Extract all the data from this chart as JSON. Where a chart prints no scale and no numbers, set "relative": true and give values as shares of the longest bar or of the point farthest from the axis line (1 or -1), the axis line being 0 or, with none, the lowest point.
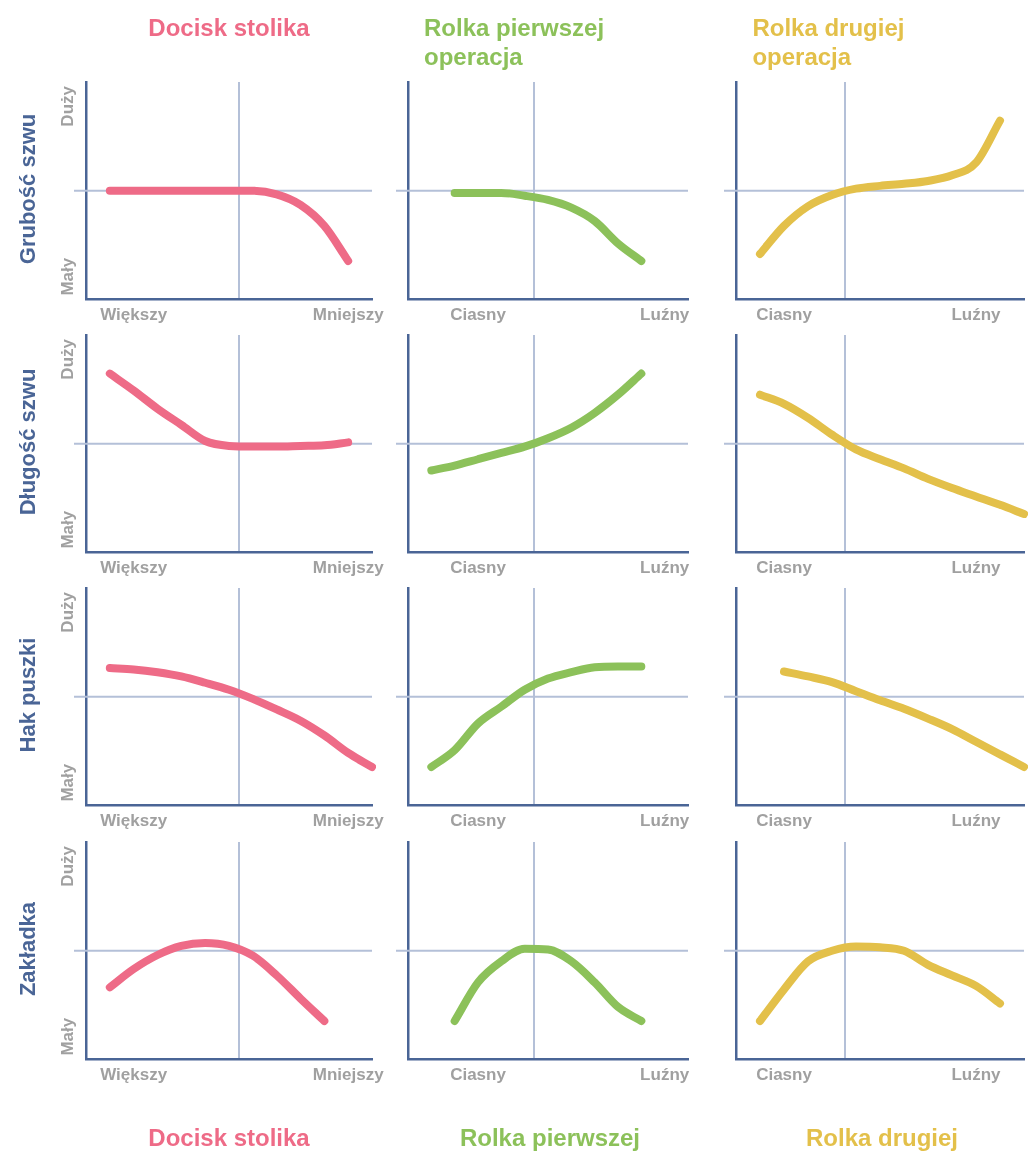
{
  "chart_data": [
    {
      "type": "line",
      "title": "Docisk stolika",
      "ylabel": "Grubość szwu",
      "relative": true,
      "categories": [
        null,
        null,
        "Większy",
        null,
        null,
        null,
        null,
        null,
        null,
        null,
        null,
        "Mniejszy",
        null
      ],
      "series": [
        {
          "color": "#ee6b87",
          "values": [
            null,
            0,
            0,
            0,
            0,
            0,
            0,
            0,
            -0.05,
            -0.2,
            -0.5,
            -1,
            null
          ]
        }
      ],
      "ref_lines": [
        {
          "axis": "y",
          "value": 0,
          "color": "#b4c0d8"
        }
      ],
      "annotations": [
        "Duży",
        "Mały"
      ]
    },
    {
      "type": "line",
      "title": "Rolka pierwszej operacja",
      "relative": true,
      "categories": [
        null,
        null,
        null,
        "Ciasny",
        null,
        null,
        null,
        null,
        null,
        null,
        null,
        "Luźny",
        null
      ],
      "series": [
        {
          "color": "#8cc15a",
          "values": [
            null,
            null,
            -0.03,
            -0.03,
            -0.03,
            -0.07,
            -0.13,
            -0.24,
            -0.43,
            -0.75,
            -1,
            null,
            null
          ]
        }
      ],
      "ref_lines": [
        {
          "axis": "y",
          "value": 0,
          "color": "#b4c0d8"
        }
      ]
    },
    {
      "type": "line",
      "title": "Rolka drugiej operacja",
      "relative": true,
      "categories": [
        null,
        null,
        "Ciasny",
        null,
        null,
        null,
        null,
        null,
        null,
        null,
        "Luźny",
        null,
        null
      ],
      "series": [
        {
          "color": "#e3c04a",
          "values": [
            null,
            -0.9,
            -0.5,
            -0.22,
            -0.06,
            0.03,
            0.07,
            0.1,
            0.14,
            0.22,
            0.4,
            1,
            null
          ]
        }
      ],
      "ref_lines": [
        {
          "axis": "y",
          "value": 0,
          "color": "#b4c0d8"
        }
      ]
    },
    {
      "type": "line",
      "ylabel": "Długość szwu",
      "relative": true,
      "categories": [
        null,
        null,
        "Większy",
        null,
        null,
        null,
        null,
        null,
        null,
        null,
        null,
        "Mniejszy",
        null
      ],
      "series": [
        {
          "color": "#ee6b87",
          "values": [
            null,
            1,
            0.76,
            0.5,
            0.27,
            0.04,
            -0.03,
            -0.04,
            -0.04,
            -0.03,
            -0.02,
            0.02,
            null
          ]
        }
      ],
      "ref_lines": [
        {
          "axis": "y",
          "value": 0,
          "color": "#b4c0d8"
        }
      ],
      "annotations": [
        "Duży",
        "Mały"
      ]
    },
    {
      "type": "line",
      "relative": true,
      "categories": [
        null,
        null,
        null,
        "Ciasny",
        null,
        null,
        null,
        null,
        null,
        null,
        null,
        "Luźny",
        null
      ],
      "series": [
        {
          "color": "#8cc15a",
          "values": [
            null,
            -0.38,
            -0.31,
            -0.22,
            -0.13,
            -0.04,
            0.08,
            0.23,
            0.44,
            0.7,
            1,
            null,
            null
          ]
        }
      ],
      "ref_lines": [
        {
          "axis": "y",
          "value": 0,
          "color": "#b4c0d8"
        }
      ]
    },
    {
      "type": "line",
      "relative": true,
      "categories": [
        null,
        null,
        "Ciasny",
        null,
        null,
        null,
        null,
        null,
        null,
        null,
        "Luźny",
        null,
        null
      ],
      "series": [
        {
          "color": "#e3c04a",
          "values": [
            null,
            0.7,
            0.57,
            0.37,
            0.13,
            -0.08,
            -0.22,
            -0.35,
            -0.5,
            -0.63,
            -0.75,
            -0.87,
            -1
          ]
        }
      ],
      "ref_lines": [
        {
          "axis": "y",
          "value": 0,
          "color": "#b4c0d8"
        }
      ]
    },
    {
      "type": "line",
      "ylabel": "Hak puszki",
      "relative": true,
      "categories": [
        null,
        null,
        "Większy",
        null,
        null,
        null,
        null,
        null,
        null,
        null,
        null,
        "Mniejszy",
        null
      ],
      "series": [
        {
          "color": "#ee6b87",
          "values": [
            null,
            0.41,
            0.39,
            0.35,
            0.29,
            0.2,
            0.1,
            -0.03,
            -0.18,
            -0.34,
            -0.55,
            -0.8,
            -1
          ]
        }
      ],
      "ref_lines": [
        {
          "axis": "y",
          "value": 0,
          "color": "#b4c0d8"
        }
      ],
      "annotations": [
        "Duży",
        "Mały"
      ]
    },
    {
      "type": "line",
      "relative": true,
      "categories": [
        null,
        null,
        null,
        "Ciasny",
        null,
        null,
        null,
        null,
        null,
        null,
        null,
        "Luźny",
        null
      ],
      "series": [
        {
          "color": "#8cc15a",
          "values": [
            null,
            -1,
            -0.76,
            -0.38,
            -0.14,
            0.1,
            0.26,
            0.35,
            0.42,
            0.43,
            0.43,
            null,
            null
          ]
        }
      ],
      "ref_lines": [
        {
          "axis": "y",
          "value": 0,
          "color": "#b4c0d8"
        }
      ]
    },
    {
      "type": "line",
      "relative": true,
      "categories": [
        null,
        null,
        "Ciasny",
        null,
        null,
        null,
        null,
        null,
        null,
        null,
        "Luźny",
        null,
        null
      ],
      "series": [
        {
          "color": "#e3c04a",
          "values": [
            null,
            null,
            0.36,
            0.29,
            0.21,
            0.08,
            -0.05,
            -0.17,
            -0.31,
            -0.46,
            -0.64,
            -0.82,
            -1
          ]
        }
      ],
      "ref_lines": [
        {
          "axis": "y",
          "value": 0,
          "color": "#b4c0d8"
        }
      ]
    },
    {
      "type": "line",
      "ylabel": "Zakładka",
      "xlabel": "Docisk stolika",
      "relative": true,
      "categories": [
        null,
        null,
        "Większy",
        null,
        null,
        null,
        null,
        null,
        null,
        null,
        null,
        "Mniejszy",
        null
      ],
      "series": [
        {
          "color": "#ee6b87",
          "values": [
            null,
            -0.52,
            -0.26,
            -0.06,
            0.07,
            0.11,
            0.07,
            -0.07,
            -0.35,
            -0.68,
            -1,
            null,
            null
          ]
        }
      ],
      "ref_lines": [
        {
          "axis": "y",
          "value": 0,
          "color": "#b4c0d8"
        }
      ],
      "annotations": [
        "Duży",
        "Mały"
      ]
    },
    {
      "type": "line",
      "xlabel": "Rolka pierwszej",
      "relative": true,
      "categories": [
        null,
        null,
        null,
        "Ciasny",
        null,
        null,
        null,
        null,
        null,
        null,
        null,
        "Luźny",
        null
      ],
      "series": [
        {
          "color": "#8cc15a",
          "values": [
            null,
            null,
            -1,
            -0.45,
            -0.15,
            0.03,
            0.02,
            -0.15,
            -0.45,
            -0.8,
            -1,
            null,
            null
          ]
        }
      ],
      "ref_lines": [
        {
          "axis": "y",
          "value": 0,
          "color": "#b4c0d8"
        }
      ]
    },
    {
      "type": "line",
      "xlabel": "Rolka drugiej",
      "relative": true,
      "categories": [
        null,
        null,
        "Ciasny",
        null,
        null,
        null,
        null,
        null,
        null,
        null,
        "Luźny",
        null,
        null
      ],
      "series": [
        {
          "color": "#e3c04a",
          "values": [
            null,
            -1,
            -0.55,
            -0.15,
            0,
            0.06,
            0.05,
            0,
            -0.2,
            -0.35,
            -0.5,
            -0.75,
            null
          ]
        }
      ],
      "ref_lines": [
        {
          "axis": "y",
          "value": 0,
          "color": "#b4c0d8"
        }
      ]
    }
  ]
}
